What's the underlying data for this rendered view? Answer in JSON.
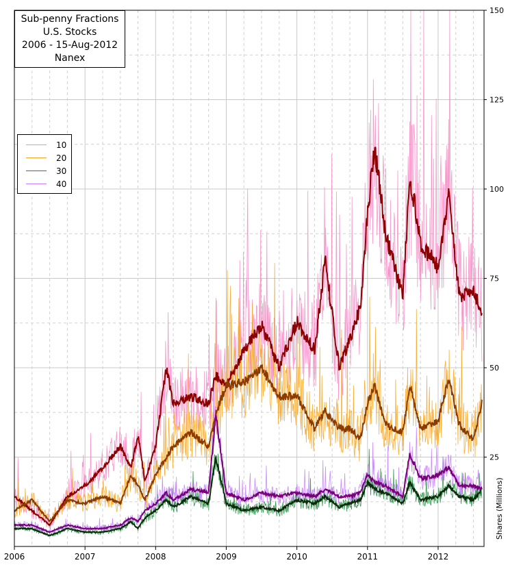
{
  "title_lines": [
    "Sub-penny Fractions",
    "U.S. Stocks",
    "2006 - 15-Aug-2012",
    "Nanex"
  ],
  "chart_data": {
    "type": "line",
    "title": "Sub-penny Fractions U.S. Stocks 2006 - 15-Aug-2012 Nanex",
    "xlabel": "",
    "ylabel": "Shares (Millions)",
    "xlim": [
      2006.0,
      2012.65
    ],
    "ylim": [
      0,
      150
    ],
    "x_ticks": [
      "2006",
      "2007",
      "2008",
      "2009",
      "2010",
      "2011",
      "2012"
    ],
    "y_ticks": [
      25,
      50,
      75,
      100,
      125,
      150
    ],
    "grid": true,
    "legend_position": "left",
    "x": [
      2006.0,
      2006.25,
      2006.5,
      2006.75,
      2007.0,
      2007.25,
      2007.5,
      2007.65,
      2007.75,
      2007.85,
      2008.0,
      2008.15,
      2008.25,
      2008.5,
      2008.75,
      2008.85,
      2009.0,
      2009.25,
      2009.5,
      2009.75,
      2010.0,
      2010.25,
      2010.4,
      2010.6,
      2010.75,
      2010.9,
      2011.0,
      2011.1,
      2011.25,
      2011.5,
      2011.6,
      2011.75,
      2012.0,
      2012.15,
      2012.3,
      2012.5,
      2012.62
    ],
    "series": [
      {
        "name": "10",
        "color": "#f48cc4",
        "smooth_color": "#8b0000",
        "values": [
          14,
          10,
          6,
          14,
          17,
          22,
          28,
          22,
          31,
          18,
          28,
          50,
          40,
          42,
          40,
          48,
          45,
          55,
          62,
          50,
          63,
          55,
          80,
          50,
          58,
          67,
          93,
          112,
          88,
          70,
          104,
          85,
          78,
          99,
          70,
          72,
          65
        ]
      },
      {
        "name": "20",
        "color": "#f5a623",
        "smooth_color": "#8b3a00",
        "values": [
          10,
          13,
          7,
          13,
          12,
          14,
          12,
          20,
          17,
          13,
          20,
          25,
          28,
          32,
          28,
          37,
          45,
          46,
          50,
          42,
          42,
          33,
          38,
          33,
          33,
          30,
          40,
          45,
          34,
          32,
          45,
          33,
          35,
          47,
          34,
          30,
          40
        ]
      },
      {
        "name": "30",
        "color": "#1a8a3a",
        "smooth_color": "#0a2a0a",
        "values": [
          5,
          5,
          3,
          5,
          4,
          4,
          5,
          7,
          5,
          8,
          10,
          13,
          11,
          14,
          12,
          25,
          12,
          10,
          11,
          10,
          13,
          12,
          14,
          11,
          12,
          13,
          18,
          16,
          15,
          12,
          18,
          13,
          14,
          17,
          14,
          13,
          16
        ]
      },
      {
        "name": "40",
        "color": "#c77dff",
        "smooth_color": "#7a007a",
        "values": [
          6,
          6,
          4,
          6,
          5,
          5,
          6,
          8,
          7,
          10,
          12,
          15,
          13,
          16,
          15,
          37,
          15,
          13,
          15,
          14,
          15,
          14,
          16,
          14,
          14,
          15,
          20,
          18,
          17,
          14,
          26,
          19,
          20,
          22,
          17,
          17,
          16
        ]
      }
    ]
  }
}
